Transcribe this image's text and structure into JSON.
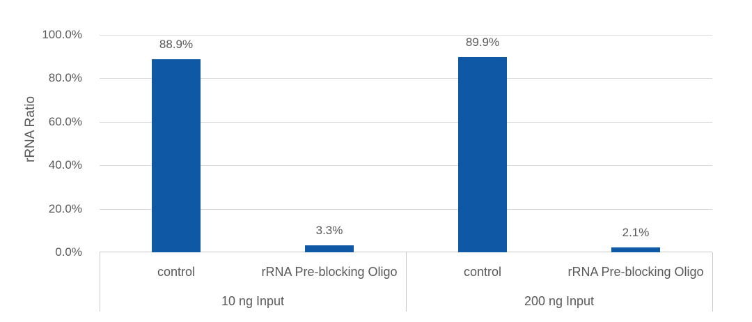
{
  "chart_data": {
    "type": "bar",
    "ylabel": "rRNA Ratio",
    "ylim": [
      0,
      1.0
    ],
    "grid": true,
    "legend": "none",
    "y_tick_labels": [
      "100.0%",
      "80.0%",
      "60.0%",
      "40.0%",
      "20.0%",
      "0.0%"
    ],
    "categories": [
      "control",
      "rRNA Pre-blocking Oligo",
      "control",
      "rRNA Pre-blocking Oligo"
    ],
    "group_labels": [
      "10 ng Input",
      "200 ng Input"
    ],
    "values": [
      0.889,
      0.033,
      0.899,
      0.021
    ],
    "value_labels": [
      "88.9%",
      "3.3%",
      "89.9%",
      "2.1%"
    ],
    "series": [
      {
        "name": "rRNA Ratio",
        "groups": [
          {
            "group": "10 ng Input",
            "points": [
              {
                "category": "control",
                "value": 0.889
              },
              {
                "category": "rRNA Pre-blocking Oligo",
                "value": 0.033
              }
            ]
          },
          {
            "group": "200 ng Input",
            "points": [
              {
                "category": "control",
                "value": 0.899
              },
              {
                "category": "rRNA Pre-blocking Oligo",
                "value": 0.021
              }
            ]
          }
        ]
      }
    ],
    "colors": {
      "bar": "#0F58A5",
      "text": "#595959",
      "gridline": "#D9D9D9",
      "axis_line": "#C9C9C9",
      "background": "#FFFFFF"
    }
  }
}
